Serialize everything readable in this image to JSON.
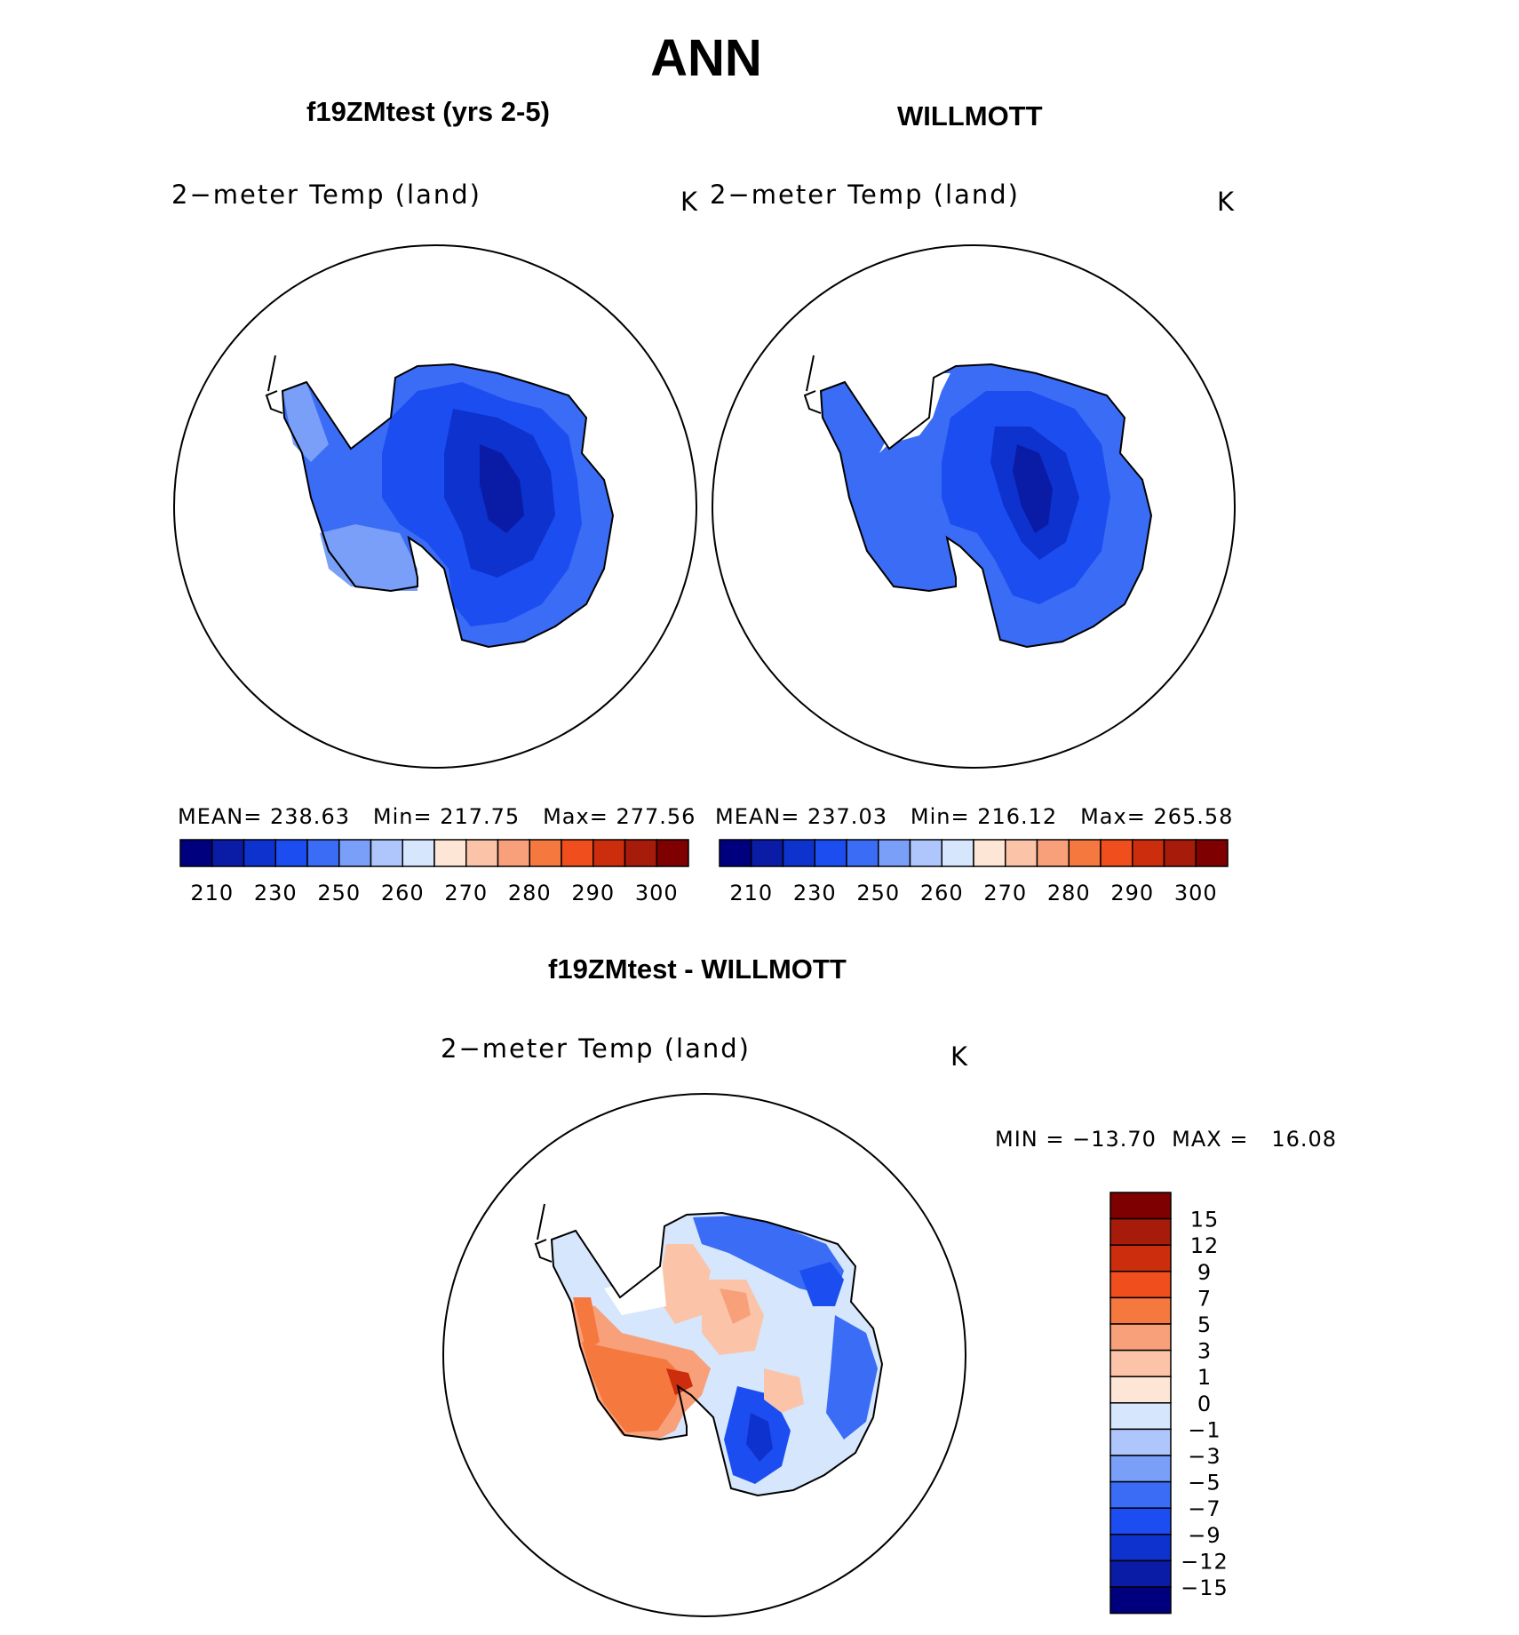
{
  "title": "ANN",
  "panels": [
    {
      "case_name": "f19ZMtest (yrs 2-5)",
      "field_label": "2−meter Temp (land)",
      "units": "K",
      "stats": {
        "mean_label": "MEAN=",
        "mean": "238.63",
        "min_label": "Min=",
        "min": "217.75",
        "max_label": "Max=",
        "max": "277.56"
      }
    },
    {
      "case_name": "WILLMOTT",
      "field_label": "2−meter Temp (land)",
      "units": "K",
      "stats": {
        "mean_label": "MEAN=",
        "mean": "237.03",
        "min_label": "Min=",
        "min": "216.12",
        "max_label": "Max=",
        "max": "265.58"
      }
    }
  ],
  "abs_colorbar": {
    "colors": [
      "#00007f",
      "#0a1ba6",
      "#0d32cd",
      "#1c4df0",
      "#3a6cf5",
      "#7a9ff9",
      "#aec6fb",
      "#d6e6fd",
      "#fde6d6",
      "#fbc4a8",
      "#f8a07a",
      "#f5783f",
      "#f04e1c",
      "#cc2d0d",
      "#a61b0a",
      "#7f0000"
    ],
    "labels": [
      "210",
      "230",
      "250",
      "260",
      "270",
      "280",
      "290",
      "300"
    ]
  },
  "diff_panel": {
    "case_name": "f19ZMtest - WILLMOTT",
    "field_label": "2−meter Temp (land)",
    "units": "K",
    "minmax": "MIN = −13.70  MAX =   16.08"
  },
  "diff_colorbar": {
    "colors": [
      "#00007f",
      "#0a1ba6",
      "#0d32cd",
      "#1c4df0",
      "#3a6cf5",
      "#7a9ff9",
      "#aec6fb",
      "#d6e6fd",
      "#fde6d6",
      "#fbc4a8",
      "#f8a07a",
      "#f5783f",
      "#f04e1c",
      "#cc2d0d",
      "#a61b0a",
      "#7f0000"
    ],
    "labels": [
      "−15",
      "−12",
      "−9",
      "−7",
      "−5",
      "−3",
      "−1",
      "0",
      "1",
      "3",
      "5",
      "7",
      "9",
      "12",
      "15"
    ]
  }
}
